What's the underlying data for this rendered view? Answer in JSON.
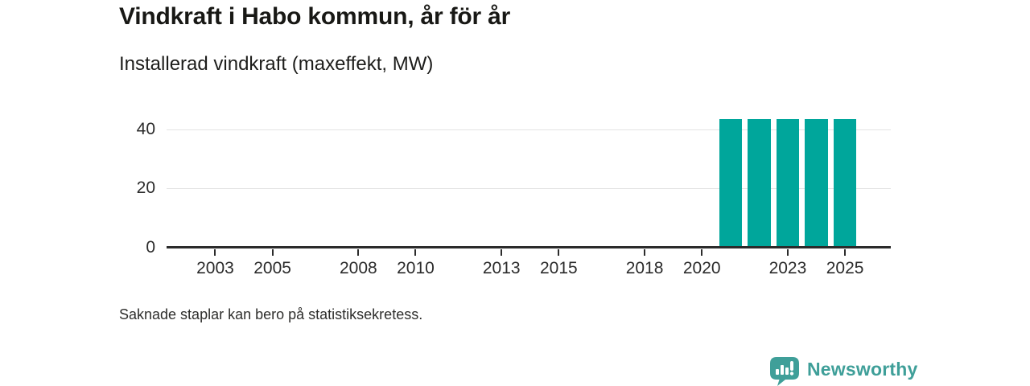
{
  "header": {
    "title": "Vindkraft i Habo kommun, år för år",
    "subtitle": "Installerad vindkraft (maxeffekt, MW)"
  },
  "footer": {
    "note": "Saknade staplar kan bero på statistiksekretess.",
    "brand": "Newsworthy"
  },
  "colors": {
    "bar": "#00a69b",
    "brand_teal": "#3f9f99",
    "axis": "#2b2b2b",
    "grid": "#e3e3e3",
    "title_text": "#181815"
  },
  "chart_data": {
    "type": "bar",
    "title": "Vindkraft i Habo kommun, år för år",
    "subtitle": "Installerad vindkraft (maxeffekt, MW)",
    "xlabel": "",
    "ylabel": "Installerad vindkraft (maxeffekt, MW)",
    "categories": [
      2021,
      2022,
      2023,
      2024,
      2025
    ],
    "values": [
      43.5,
      43.5,
      43.5,
      43.5,
      43.5
    ],
    "missing_years_note": "Saknade staplar kan bero på statistiksekretess.",
    "x_domain": [
      2001.3,
      2026.6
    ],
    "x_tick_labels": [
      "2003",
      "2005",
      "2008",
      "2010",
      "2013",
      "2015",
      "2018",
      "2020",
      "2023",
      "2025"
    ],
    "y_domain": [
      0,
      45.7
    ],
    "y_ticks": [
      0,
      20,
      40
    ],
    "bar_width_years": 0.8,
    "bar_color": "#00a69b",
    "grid": "horizontal",
    "legend": "none"
  }
}
